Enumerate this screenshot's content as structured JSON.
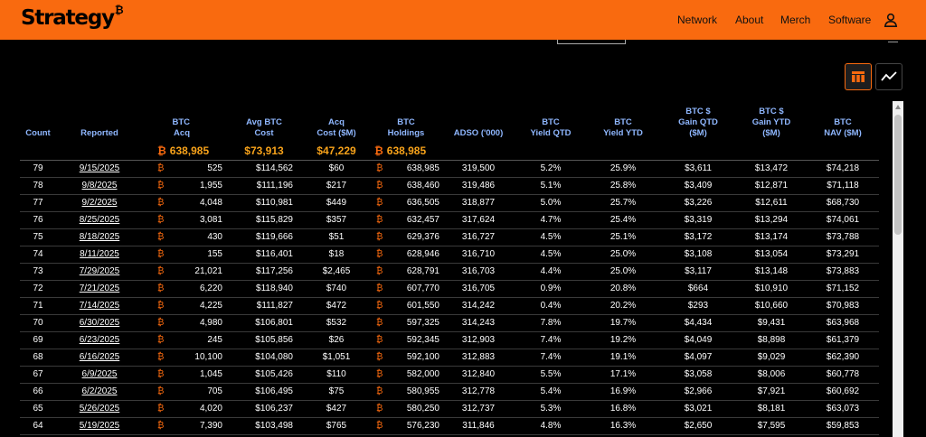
{
  "header": {
    "logo_text": "Strategy",
    "logo_mark": "₿",
    "nav": [
      "Network",
      "About",
      "Merch",
      "Software"
    ],
    "accent_color": "#f96a0f",
    "user_icon": "user-icon"
  },
  "view_toggle": {
    "active": "table",
    "icons": [
      "table-icon",
      "line-chart-icon"
    ]
  },
  "table": {
    "btc_symbol": "₿",
    "columns": [
      "Count",
      "Reported",
      "BTC\nAcq",
      "Avg BTC\nCost",
      "Acq\nCost ($M)",
      "BTC\nHoldings",
      "ADSO ('000)",
      "BTC\nYield QTD",
      "BTC\nYield YTD",
      "BTC $\nGain QTD\n($M)",
      "BTC $\nGain YTD\n($M)",
      "BTC\nNAV ($M)"
    ],
    "totals": {
      "btc_acq": "638,985",
      "avg_cost": "$73,913",
      "acq_cost": "$47,229",
      "holdings": "638,985"
    },
    "rows": [
      [
        "79",
        "9/15/2025",
        "525",
        "$114,562",
        "$60",
        "638,985",
        "319,500",
        "5.2%",
        "25.9%",
        "$3,611",
        "$13,472",
        "$74,218"
      ],
      [
        "78",
        "9/8/2025",
        "1,955",
        "$111,196",
        "$217",
        "638,460",
        "319,486",
        "5.1%",
        "25.8%",
        "$3,409",
        "$12,871",
        "$71,118"
      ],
      [
        "77",
        "9/2/2025",
        "4,048",
        "$110,981",
        "$449",
        "636,505",
        "318,877",
        "5.0%",
        "25.7%",
        "$3,226",
        "$12,611",
        "$68,730"
      ],
      [
        "76",
        "8/25/2025",
        "3,081",
        "$115,829",
        "$357",
        "632,457",
        "317,624",
        "4.7%",
        "25.4%",
        "$3,319",
        "$13,294",
        "$74,061"
      ],
      [
        "75",
        "8/18/2025",
        "430",
        "$119,666",
        "$51",
        "629,376",
        "316,727",
        "4.5%",
        "25.1%",
        "$3,172",
        "$13,174",
        "$73,788"
      ],
      [
        "74",
        "8/11/2025",
        "155",
        "$116,401",
        "$18",
        "628,946",
        "316,710",
        "4.5%",
        "25.0%",
        "$3,108",
        "$13,054",
        "$73,291"
      ],
      [
        "73",
        "7/29/2025",
        "21,021",
        "$117,256",
        "$2,465",
        "628,791",
        "316,703",
        "4.4%",
        "25.0%",
        "$3,117",
        "$13,148",
        "$73,883"
      ],
      [
        "72",
        "7/21/2025",
        "6,220",
        "$118,940",
        "$740",
        "607,770",
        "316,705",
        "0.9%",
        "20.8%",
        "$664",
        "$10,910",
        "$71,152"
      ],
      [
        "71",
        "7/14/2025",
        "4,225",
        "$111,827",
        "$472",
        "601,550",
        "314,242",
        "0.4%",
        "20.2%",
        "$293",
        "$10,660",
        "$70,983"
      ],
      [
        "70",
        "6/30/2025",
        "4,980",
        "$106,801",
        "$532",
        "597,325",
        "314,243",
        "7.8%",
        "19.7%",
        "$4,434",
        "$9,431",
        "$63,968"
      ],
      [
        "69",
        "6/23/2025",
        "245",
        "$105,856",
        "$26",
        "592,345",
        "312,903",
        "7.4%",
        "19.2%",
        "$4,049",
        "$8,898",
        "$61,379"
      ],
      [
        "68",
        "6/16/2025",
        "10,100",
        "$104,080",
        "$1,051",
        "592,100",
        "312,883",
        "7.4%",
        "19.1%",
        "$4,097",
        "$9,029",
        "$62,390"
      ],
      [
        "67",
        "6/9/2025",
        "1,045",
        "$105,426",
        "$110",
        "582,000",
        "312,840",
        "5.5%",
        "17.1%",
        "$3,058",
        "$8,006",
        "$60,778"
      ],
      [
        "66",
        "6/2/2025",
        "705",
        "$106,495",
        "$75",
        "580,955",
        "312,778",
        "5.4%",
        "16.9%",
        "$2,966",
        "$7,921",
        "$60,692"
      ],
      [
        "65",
        "5/26/2025",
        "4,020",
        "$106,237",
        "$427",
        "580,250",
        "312,737",
        "5.3%",
        "16.8%",
        "$3,021",
        "$8,181",
        "$63,073"
      ],
      [
        "64",
        "5/19/2025",
        "7,390",
        "$103,498",
        "$765",
        "576,230",
        "311,846",
        "4.8%",
        "16.3%",
        "$2,650",
        "$7,595",
        "$59,853"
      ]
    ]
  }
}
